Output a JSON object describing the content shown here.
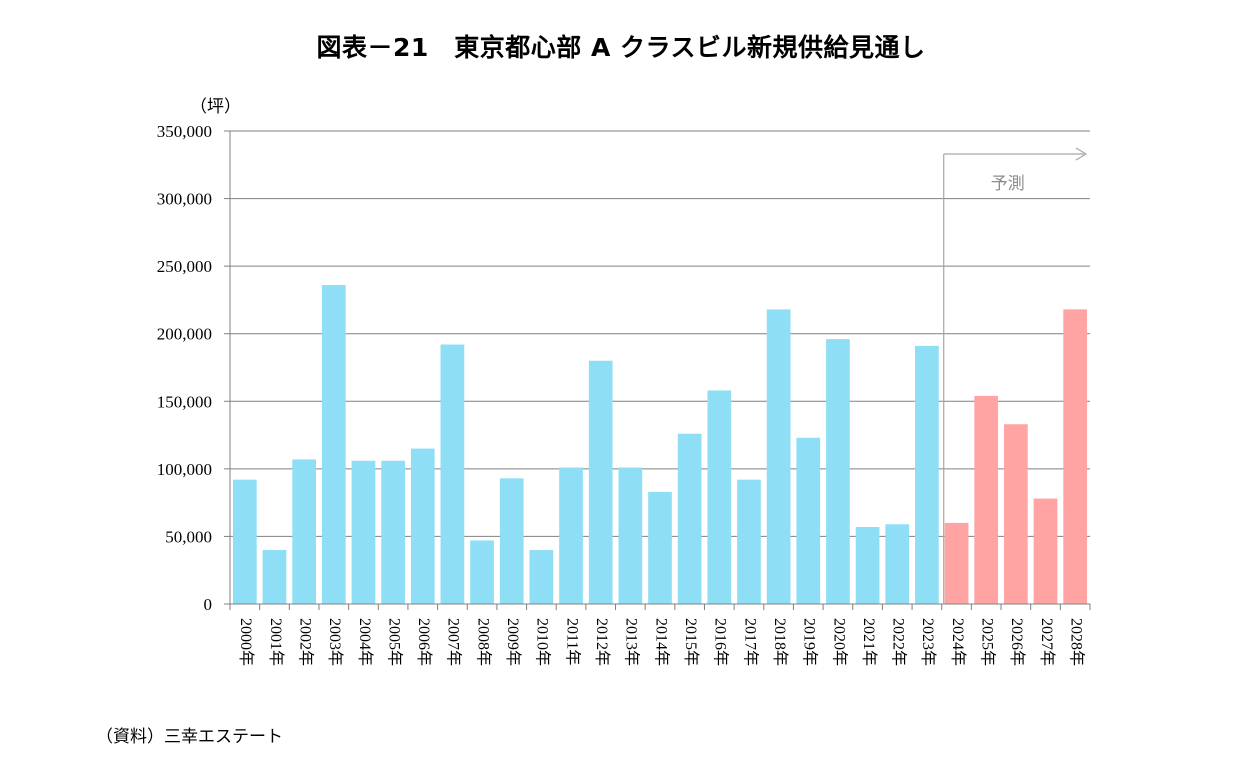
{
  "chart_data": {
    "type": "bar",
    "title": "図表－21　東京都心部 A クラスビル新規供給見通し",
    "ylabel": "（坪）",
    "ylim": [
      0,
      350000
    ],
    "yticks": [
      0,
      50000,
      100000,
      150000,
      200000,
      250000,
      300000,
      350000
    ],
    "ytick_labels": [
      "0",
      "50,000",
      "100,000",
      "150,000",
      "200,000",
      "250,000",
      "300,000",
      "350,000"
    ],
    "grid": true,
    "categories": [
      "2000年",
      "2001年",
      "2002年",
      "2003年",
      "2004年",
      "2005年",
      "2006年",
      "2007年",
      "2008年",
      "2009年",
      "2010年",
      "2011年",
      "2012年",
      "2013年",
      "2014年",
      "2015年",
      "2016年",
      "2017年",
      "2018年",
      "2019年",
      "2020年",
      "2021年",
      "2022年",
      "2023年",
      "2024年",
      "2025年",
      "2026年",
      "2027年",
      "2028年"
    ],
    "values": [
      92000,
      40000,
      107000,
      236000,
      106000,
      106000,
      115000,
      192000,
      47000,
      93000,
      40000,
      101000,
      180000,
      101000,
      83000,
      126000,
      158000,
      92000,
      218000,
      123000,
      196000,
      57000,
      59000,
      191000,
      60000,
      154000,
      133000,
      78000,
      218000
    ],
    "forecast_start_index": 24,
    "forecast_label": "予測",
    "colors": {
      "actual": "#8edff5",
      "forecast": "#ffa3a3",
      "grid": "#808080",
      "axis": "#808080",
      "forecast_marker": "#a6a6a6"
    },
    "source": "（資料）三幸エステート"
  }
}
